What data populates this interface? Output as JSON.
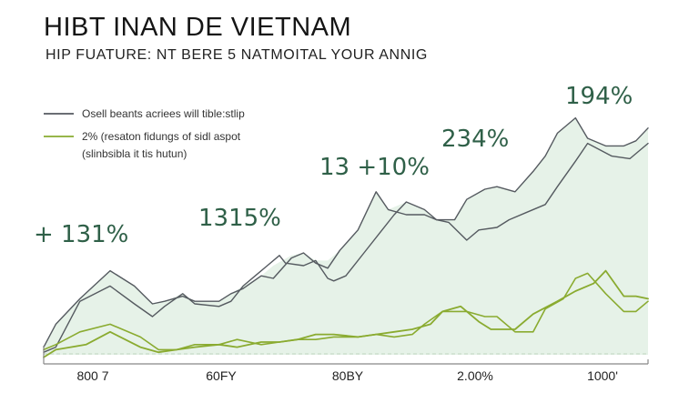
{
  "title": "HIBT INAN DE VIETNAM",
  "subtitle": "HIP FUATURE: NT BERE 5 NATMOITAL YOUR ANNIG",
  "colors": {
    "series_dark": "#555a60",
    "series_green": "#8aab30",
    "area_fill": "#e6f2e8",
    "annotation": "#2f6048",
    "axis": "#888888",
    "baseline_dashed": "#c8dcc8"
  },
  "legend": [
    {
      "label": "Osell beants acriees will tible:stlip",
      "color": "#555a60"
    },
    {
      "label": "2% (resaton fidungs of sidl aspot",
      "color": "#8aab30"
    },
    {
      "label": "(slinbsibla it tis hutun)",
      "color": null
    }
  ],
  "chart_data": {
    "type": "line",
    "title": "HIBT INAN DE VIETNAM",
    "subtitle": "HIP FUATURE: NT BERE 5 NATMOITAL YOUR ANNIG",
    "xlabel": "",
    "ylabel": "",
    "x_ticks": [
      "800 7",
      "60FY",
      "80BY",
      "2.00%",
      "1000'"
    ],
    "xlim": [
      0,
      100
    ],
    "ylim": [
      0,
      100
    ],
    "grid": false,
    "legend_position": "top-left",
    "series": [
      {
        "name": "Osell beants acriees will tible:stlip",
        "role": "line",
        "x": [
          0,
          2,
          6,
          11,
          15,
          18,
          20,
          23,
          25,
          29,
          31,
          33,
          35,
          37,
          39,
          40,
          43,
          45,
          47,
          48,
          50,
          51,
          53,
          56,
          58,
          60,
          63,
          65,
          67,
          70,
          72,
          75,
          77,
          80,
          83,
          85,
          88,
          90,
          94,
          97,
          100
        ],
        "y": [
          1,
          3,
          21,
          27,
          20,
          15,
          19,
          24,
          20,
          19,
          21,
          27,
          31,
          35,
          39,
          36,
          35,
          37,
          30,
          29,
          31,
          34,
          40,
          49,
          55,
          60,
          57,
          53,
          52,
          45,
          49,
          50,
          53,
          56,
          59,
          66,
          76,
          83,
          78,
          77,
          83
        ]
      },
      {
        "name": "",
        "role": "line",
        "x": [
          0,
          2,
          6,
          11,
          15,
          18,
          20,
          23,
          25,
          29,
          31,
          33,
          36,
          38,
          41,
          43,
          45,
          47,
          49,
          52,
          55,
          57,
          60,
          63,
          65,
          68,
          70,
          73,
          75,
          78,
          81,
          83,
          85,
          88,
          90,
          93,
          96,
          98,
          100
        ],
        "y": [
          3,
          12,
          22,
          33,
          27,
          20,
          21,
          23,
          21,
          21,
          24,
          26,
          31,
          30,
          38,
          40,
          36,
          34,
          41,
          49,
          64,
          57,
          55,
          55,
          53,
          53,
          61,
          65,
          66,
          64,
          72,
          78,
          87,
          93,
          85,
          82,
          82,
          84,
          89
        ]
      },
      {
        "name": "2% (resaton fidungs of sidl aspot",
        "role": "line",
        "x": [
          0,
          2,
          7,
          11,
          16,
          19,
          22,
          25,
          29,
          32,
          36,
          39,
          42,
          45,
          48,
          52,
          55,
          58,
          61,
          64,
          66,
          69,
          72,
          74,
          78,
          81,
          85,
          88,
          91,
          93,
          96,
          98,
          100
        ],
        "y": [
          -1,
          2,
          4,
          9,
          3,
          1,
          2,
          3,
          4,
          3,
          5,
          5,
          6,
          8,
          8,
          7,
          8,
          9,
          10,
          12,
          17,
          19,
          13,
          10,
          10,
          16,
          21,
          25,
          28,
          33,
          23,
          23,
          22
        ]
      },
      {
        "name": "",
        "role": "line",
        "x": [
          0,
          2,
          6,
          11,
          16,
          19,
          22,
          25,
          29,
          32,
          36,
          39,
          42,
          45,
          48,
          52,
          55,
          58,
          61,
          63,
          66,
          70,
          73,
          75,
          78,
          81,
          83,
          86,
          88,
          90,
          93,
          96,
          98,
          100
        ],
        "y": [
          2,
          4,
          9,
          12,
          7,
          2,
          2,
          4,
          4,
          6,
          4,
          5,
          6,
          6,
          7,
          7,
          8,
          7,
          8,
          12,
          17,
          17,
          15,
          15,
          9,
          9,
          18,
          22,
          30,
          32,
          24,
          17,
          17,
          21
        ]
      }
    ],
    "area": {
      "x": [
        0,
        2,
        6,
        11,
        15,
        18,
        20,
        23,
        25,
        29,
        31,
        33,
        36,
        38,
        41,
        43,
        45,
        47,
        49,
        52,
        55,
        57,
        60,
        63,
        65,
        68,
        70,
        73,
        75,
        78,
        81,
        83,
        85,
        88,
        90,
        93,
        96,
        98,
        100
      ],
      "y": [
        3,
        12,
        22,
        33,
        27,
        20,
        21,
        24,
        21,
        21,
        24,
        27,
        31,
        35,
        39,
        40,
        37,
        37,
        41,
        49,
        64,
        57,
        60,
        57,
        53,
        53,
        61,
        65,
        66,
        64,
        72,
        78,
        87,
        93,
        85,
        82,
        82,
        84,
        89
      ]
    },
    "annotations": [
      {
        "text": "194%",
        "x": 86,
        "y": 98
      },
      {
        "text": "234%",
        "x": 72,
        "y": 82
      },
      {
        "text": "13 +10%",
        "x": 48,
        "y": 72
      },
      {
        "text": "1315%",
        "x": 28,
        "y": 52
      },
      {
        "text": "+ 131%",
        "x": 1,
        "y": 43
      }
    ]
  }
}
